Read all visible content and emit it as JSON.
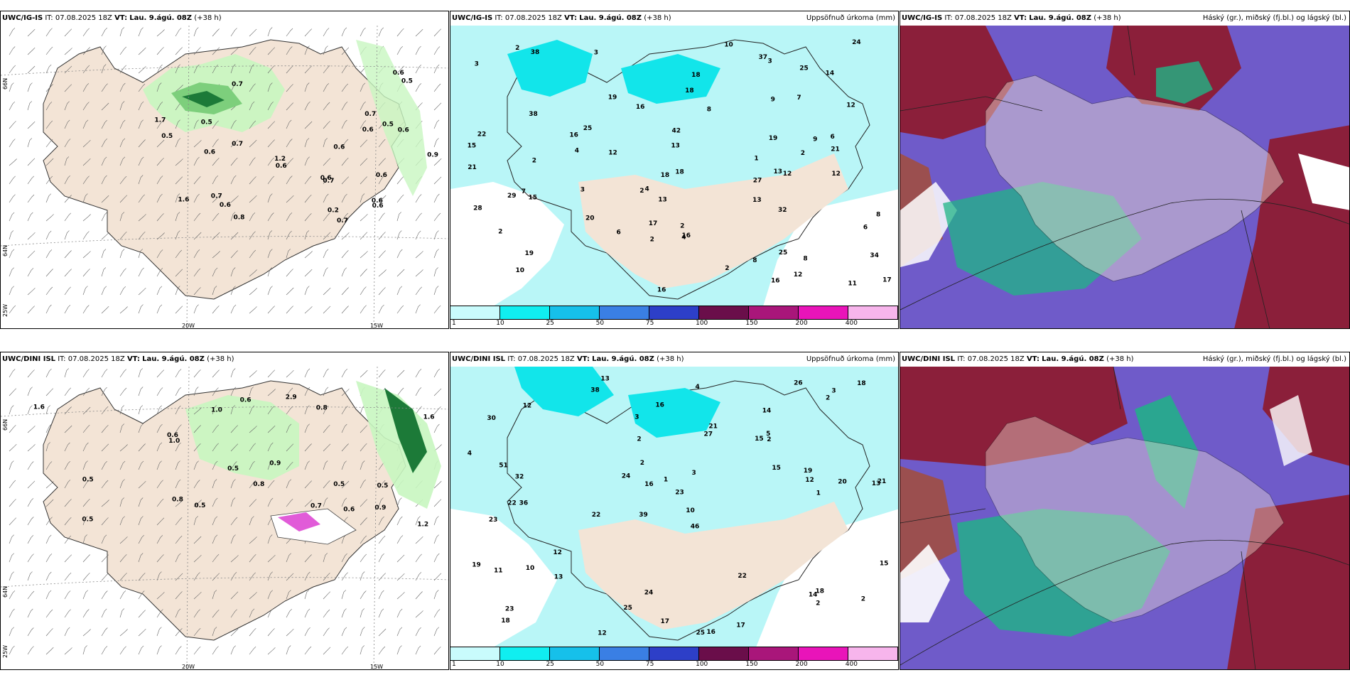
{
  "colors": {
    "land": "#f3e4d6",
    "sea": "#ffffff",
    "precip_light": "#b9f6f7",
    "precip_cyan": "#12e5ea",
    "green_light": "#c8f6c0",
    "green_mid": "#7dcf7c",
    "green_dark": "#1c7a38",
    "cloud_high": "#1fb486",
    "cloud_mid": "#6f5bc9",
    "cloud_low": "#8b1f3a",
    "cloud_brown": "#9b4f4f"
  },
  "rows": [
    {
      "model": "UWC/IG-IS",
      "it_label": "IT:",
      "it_value": "07.08.2025 18Z",
      "vt_label": "VT:",
      "vt_value": "Lau. 9.ágú. 08Z",
      "lead": "(+38 h)",
      "precip_title": "Uppsöfnuð úrkoma (mm)",
      "cloud_title": "Háský (gr.), miðský (fj.bl.) og lágský (bl.)",
      "lat_labels": [
        "66N",
        "64N"
      ],
      "lat_left": "25W",
      "lon_labels": [
        "20W",
        "15W"
      ],
      "wind_values": [
        "0.7",
        "0.7",
        "0.7",
        "0.5",
        "0.5",
        "0.2",
        "0.9",
        "0.7",
        "0.6",
        "0.6",
        "1.6",
        "1.7",
        "1.2",
        "0.6",
        "0.6",
        "0.6",
        "0.5",
        "0.5",
        "0.6",
        "0.6",
        "0.6",
        "0.7",
        "0.8",
        "0.6",
        "0.6",
        "0.7",
        "0.6"
      ],
      "precip_values": [
        "13",
        "8",
        "9",
        "6",
        "8",
        "7",
        "6",
        "42",
        "34",
        "12",
        "13",
        "27",
        "28",
        "32",
        "20",
        "11",
        "14",
        "29",
        "25",
        "16",
        "13",
        "21",
        "19",
        "37",
        "21",
        "19",
        "38",
        "9",
        "17",
        "15",
        "12",
        "10",
        "22",
        "25",
        "12",
        "10",
        "8",
        "18",
        "12",
        "16",
        "4",
        "3",
        "18",
        "16",
        "15",
        "19",
        "24",
        "25",
        "18",
        "38",
        "17",
        "16",
        "13",
        "8",
        "3",
        "4",
        "3",
        "2",
        "2",
        "16",
        "12",
        "2",
        "18",
        "2",
        "4",
        "2",
        "1",
        "6",
        "2",
        "2",
        "3",
        "2",
        "7"
      ]
    },
    {
      "model": "UWC/DINI ISL",
      "it_label": "IT:",
      "it_value": "07.08.2025 18Z",
      "vt_label": "VT:",
      "vt_value": "Lau. 9.ágú. 08Z",
      "lead": "(+38 h)",
      "precip_title": "Uppsöfnuð úrkoma (mm)",
      "cloud_title": "Háský (gr.), miðský (fj.bl.) og lágský (bl.)",
      "lat_labels": [
        "66N",
        "64N"
      ],
      "lat_left": "25W",
      "lon_labels": [
        "20W",
        "15W"
      ],
      "wind_values": [
        "0.5",
        "0.5",
        "0.9",
        "0.8",
        "1.0",
        "2.9",
        "0.9",
        "0.8",
        "0.6",
        "0.8",
        "1.2",
        "1.0",
        "0.5",
        "0.6",
        "0.7",
        "0.6",
        "0.5",
        "0.5",
        "0.5",
        "1.6",
        "1.6"
      ],
      "precip_values": [
        "13",
        "14",
        "13",
        "39",
        "46",
        "36",
        "30",
        "15",
        "23",
        "27",
        "23",
        "18",
        "38",
        "22",
        "25",
        "16",
        "24",
        "26",
        "15",
        "12",
        "32",
        "22",
        "21",
        "20",
        "19",
        "51",
        "16",
        "12",
        "18",
        "11",
        "14",
        "21",
        "10",
        "24",
        "22",
        "15",
        "19",
        "25",
        "18",
        "16",
        "23",
        "12",
        "17",
        "12",
        "17",
        "2",
        "2",
        "5",
        "4",
        "10",
        "3",
        "1",
        "3",
        "2",
        "4",
        "13",
        "2",
        "1",
        "3",
        "2",
        "2"
      ]
    }
  ],
  "legend": {
    "ticks": [
      "1",
      "10",
      "25",
      "50",
      "75",
      "100",
      "150",
      "200",
      "400"
    ],
    "colors": [
      "#c9fbfc",
      "#10eef0",
      "#16c0ea",
      "#3a7fe4",
      "#2d3fc8",
      "#6a0e4a",
      "#a9167a",
      "#e914b9",
      "#f7b5ec"
    ]
  }
}
